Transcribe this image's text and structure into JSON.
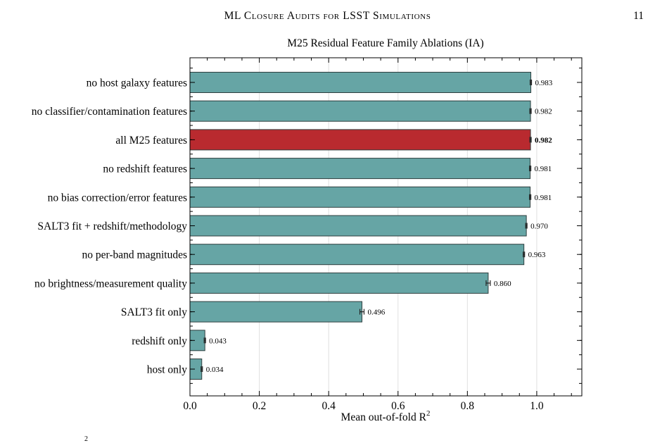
{
  "header": {
    "running_title": "ML Closure Audits for LSST Simulations",
    "page_number": "11"
  },
  "chart_data": {
    "type": "bar",
    "orientation": "horizontal",
    "title": "M25 Residual Feature Family Ablations (IA)",
    "xlabel": "Mean out-of-fold R",
    "xlabel_superscript": "2",
    "ylabel": "",
    "xlim": [
      0.0,
      1.13
    ],
    "xticks": [
      "0.0",
      "0.2",
      "0.4",
      "0.6",
      "0.8",
      "1.0"
    ],
    "xtick_values": [
      0.0,
      0.2,
      0.4,
      0.6,
      0.8,
      1.0
    ],
    "grid": true,
    "categories": [
      "no host galaxy features",
      "no classifier/contamination features",
      "all M25 features",
      "no redshift features",
      "no bias correction/error features",
      "SALT3 fit + redshift/methodology",
      "no per-band magnitudes",
      "no brightness/measurement quality",
      "SALT3 fit only",
      "redshift only",
      "host only"
    ],
    "values": [
      0.983,
      0.982,
      0.982,
      0.981,
      0.981,
      0.97,
      0.963,
      0.86,
      0.496,
      0.043,
      0.034
    ],
    "value_labels": [
      "0.983",
      "0.982",
      "0.982",
      "0.981",
      "0.981",
      "0.970",
      "0.963",
      "0.860",
      "0.496",
      "0.043",
      "0.034"
    ],
    "errors": [
      0.002,
      0.002,
      0.002,
      0.002,
      0.002,
      0.002,
      0.002,
      0.006,
      0.006,
      0.002,
      0.002
    ],
    "highlight_index": 2,
    "bar_color": "#66a5a5",
    "highlight_color": "#b92a2f",
    "edge_color": "#2f3f3f"
  },
  "footnote": {
    "text": "2"
  }
}
